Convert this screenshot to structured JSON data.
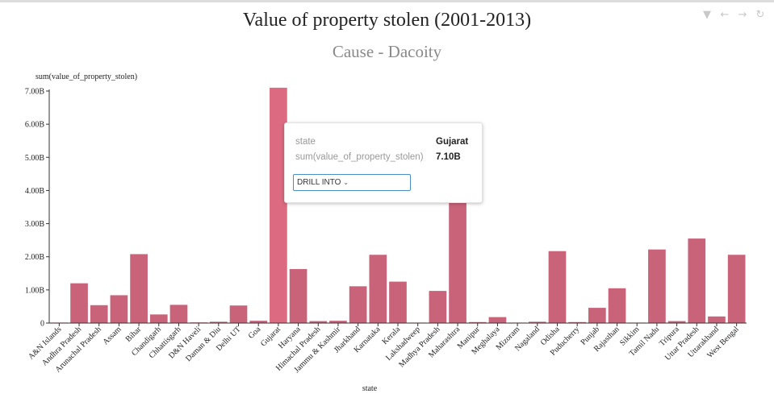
{
  "title": "Value of property stolen (2001-2013)",
  "subtitle": "Cause - Dacoity",
  "toolbar": {
    "icons": [
      "filter-icon",
      "back-arrow-icon",
      "forward-arrow-icon",
      "refresh-icon"
    ]
  },
  "tooltip": {
    "state_key": "state",
    "state_value": "Gujarat",
    "measure_key": "sum(value_of_property_stolen)",
    "measure_value": "7.10B",
    "drill_label": "DRILL INTO"
  },
  "colors": {
    "bar": "#c8637a",
    "bar_highlight": "#dc6a80"
  },
  "chart_data": {
    "type": "bar",
    "title": "Value of property stolen (2001-2013)",
    "subtitle": "Cause - Dacoity",
    "xlabel": "state",
    "ylabel": "sum(value_of_property_stolen)",
    "ylim": [
      0,
      7.0
    ],
    "yunit": "B",
    "yticks": [
      "0",
      "1.00B",
      "2.00B",
      "3.00B",
      "4.00B",
      "5.00B",
      "6.00B",
      "7.00B"
    ],
    "categories": [
      "A&N Islands",
      "Andhra Pradesh",
      "Arunachal Pradesh",
      "Assam",
      "Bihar",
      "Chandigarh",
      "Chhattisgarh",
      "D&N Haveli",
      "Daman & Diu",
      "Delhi UT",
      "Goa",
      "Gujarat",
      "Haryana",
      "Himachal Pradesh",
      "Jammu & Kashmir",
      "Jharkhand",
      "Karnataka",
      "Kerala",
      "Lakshadweep",
      "Madhya Pradesh",
      "Maharashtra",
      "Manipur",
      "Meghalaya",
      "Mizoram",
      "Nagaland",
      "Odisha",
      "Puducherry",
      "Punjab",
      "Rajasthan",
      "Sikkim",
      "Tamil Nadu",
      "Tripura",
      "Uttar Pradesh",
      "Uttarakhand",
      "West Bengal"
    ],
    "values": [
      0.015,
      1.2,
      0.54,
      0.84,
      2.08,
      0.26,
      0.55,
      0.02,
      0.04,
      0.53,
      0.07,
      7.1,
      1.63,
      0.06,
      0.07,
      1.11,
      2.06,
      1.25,
      0.0,
      0.97,
      4.05,
      0.03,
      0.18,
      0.01,
      0.04,
      2.17,
      0.03,
      0.46,
      1.05,
      0.005,
      2.22,
      0.06,
      2.55,
      0.2,
      2.06
    ],
    "highlighted": "Gujarat",
    "grid": false,
    "legend": "none"
  }
}
